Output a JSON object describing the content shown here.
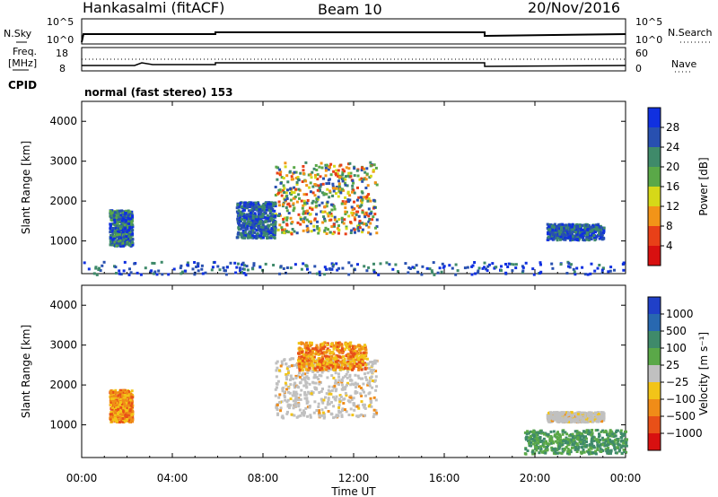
{
  "header": {
    "station": "Hankasalmi (fitACF)",
    "beam": "Beam 10",
    "date": "20/Nov/2016"
  },
  "top_panels": {
    "nsky_label": "N.Sky",
    "nsky_ticks": [
      "10^5",
      "10^0"
    ],
    "nsearch_label": "N.Search",
    "nsearch_ticks": [
      "10^5",
      "10^0"
    ],
    "freq_label_1": "Freq.",
    "freq_label_2": "[MHz]",
    "freq_ticks": [
      "18",
      "8"
    ],
    "nave_label": "Nave",
    "nave_ticks": [
      "60",
      "0"
    ],
    "cpid_label": "CPID",
    "cpid_text": "normal (fast stereo) 153"
  },
  "chart_data": [
    {
      "type": "heatmap",
      "title": "",
      "xlabel": "Time UT",
      "ylabel": "Slant Range [km]",
      "x_ticks": [
        "00:00",
        "04:00",
        "08:00",
        "12:00",
        "16:00",
        "20:00",
        "00:00"
      ],
      "y_ticks": [
        "1000",
        "2000",
        "3000",
        "4000"
      ],
      "ylim": [
        180,
        4500
      ],
      "colorbar": {
        "label": "Power [dB]",
        "ticks": [
          "4",
          "8",
          "12",
          "16",
          "20",
          "24",
          "28"
        ],
        "colors": [
          "#1030e0",
          "#2850b0",
          "#3f8a6a",
          "#5aa848",
          "#d6d818",
          "#f29418",
          "#e84018",
          "#d81010"
        ]
      },
      "regions": [
        {
          "t": [
            1.2,
            2.2
          ],
          "r": [
            900,
            1800
          ],
          "level": "mix-low"
        },
        {
          "t": [
            8.5,
            13.0
          ],
          "r": [
            1200,
            3000
          ],
          "level": "mix-high"
        },
        {
          "t": [
            6.8,
            8.5
          ],
          "r": [
            1100,
            2000
          ],
          "level": "low"
        },
        {
          "t": [
            20.5,
            23.0
          ],
          "r": [
            1050,
            1450
          ],
          "level": "low"
        },
        {
          "t": [
            0,
            24
          ],
          "r": [
            180,
            500
          ],
          "level": "low-sparse"
        }
      ]
    },
    {
      "type": "heatmap",
      "title": "",
      "xlabel": "Time UT",
      "ylabel": "Slant Range [km]",
      "x_ticks": [
        "00:00",
        "04:00",
        "08:00",
        "12:00",
        "16:00",
        "20:00",
        "00:00"
      ],
      "y_ticks": [
        "1000",
        "2000",
        "3000",
        "4000"
      ],
      "ylim": [
        180,
        4500
      ],
      "colorbar": {
        "label": "Velocity [m s⁻¹]",
        "ticks": [
          "1000",
          "500",
          "100",
          "25",
          "−25",
          "−100",
          "−500",
          "−1000"
        ],
        "colors": [
          "#2040c8",
          "#2868b0",
          "#3f8a6a",
          "#5aa848",
          "#c0c0c0",
          "#f2c418",
          "#f08c18",
          "#e85018",
          "#d81010"
        ]
      },
      "regions": [
        {
          "t": [
            1.2,
            2.2
          ],
          "r": [
            1100,
            1900
          ],
          "level": "negative"
        },
        {
          "t": [
            8.5,
            13.0
          ],
          "r": [
            1200,
            2700
          ],
          "level": "ground"
        },
        {
          "t": [
            9.5,
            12.5
          ],
          "r": [
            2400,
            3100
          ],
          "level": "negative"
        },
        {
          "t": [
            20.5,
            23.0
          ],
          "r": [
            1100,
            1350
          ],
          "level": "ground"
        },
        {
          "t": [
            19.5,
            24
          ],
          "r": [
            300,
            900
          ],
          "level": "positive"
        }
      ]
    }
  ]
}
